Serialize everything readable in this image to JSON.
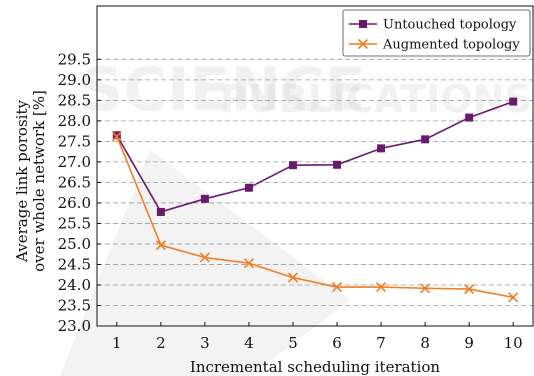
{
  "chart_data": {
    "type": "line",
    "xlabel": "Incremental scheduling iteration",
    "ylabel_lines": [
      "Average link porosity",
      "over whole network [%]"
    ],
    "x": [
      1,
      2,
      3,
      4,
      5,
      6,
      7,
      8,
      9,
      10
    ],
    "xlim": [
      0.55,
      10.45
    ],
    "ylim": [
      23.0,
      30.8
    ],
    "yticks": [
      23.0,
      23.5,
      24.0,
      24.5,
      25.0,
      25.5,
      26.0,
      26.5,
      27.0,
      27.5,
      28.0,
      28.5,
      29.0,
      29.5
    ],
    "grid": "y-dashed",
    "legend_position": "top-right",
    "series": [
      {
        "name": "Untouched topology",
        "color": "#6a1a6e",
        "marker": "square",
        "values": [
          27.65,
          25.78,
          26.1,
          26.37,
          26.92,
          26.93,
          27.33,
          27.55,
          28.08,
          28.47
        ]
      },
      {
        "name": "Augmented topology",
        "color": "#f07d23",
        "marker": "x",
        "values": [
          27.62,
          24.97,
          24.67,
          24.53,
          24.18,
          23.95,
          23.95,
          23.92,
          23.9,
          23.7
        ]
      }
    ]
  }
}
